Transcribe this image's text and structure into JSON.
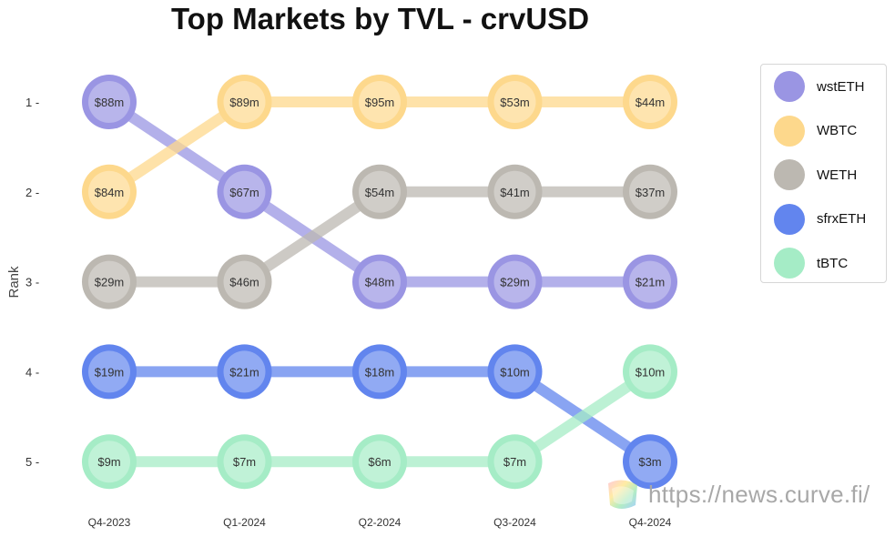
{
  "chart_data": {
    "type": "line",
    "subtype": "bump",
    "title": "Top Markets by TVL - crvUSD",
    "xlabel": "",
    "ylabel": "Rank",
    "categories": [
      "Q4-2023",
      "Q1-2024",
      "Q2-2024",
      "Q3-2024",
      "Q4-2024"
    ],
    "ranks": [
      1,
      2,
      3,
      4,
      5
    ],
    "rank_labels": [
      "1 -",
      "2 -",
      "3 -",
      "4 -",
      "5 -"
    ],
    "y_inverted": true,
    "grid": false,
    "legend_position": "right",
    "series": [
      {
        "name": "wstETH",
        "color": "#9a95e3",
        "ranks": [
          1,
          2,
          3,
          3,
          3
        ],
        "labels": [
          "$88m",
          "$67m",
          "$48m",
          "$29m",
          "$21m"
        ]
      },
      {
        "name": "WBTC",
        "color": "#fdd88c",
        "ranks": [
          2,
          1,
          1,
          1,
          1
        ],
        "labels": [
          "$84m",
          "$89m",
          "$95m",
          "$53m",
          "$44m"
        ]
      },
      {
        "name": "WETH",
        "color": "#bcb8b1",
        "ranks": [
          3,
          3,
          2,
          2,
          2
        ],
        "labels": [
          "$29m",
          "$46m",
          "$54m",
          "$41m",
          "$37m"
        ]
      },
      {
        "name": "sfrxETH",
        "color": "#6285ee",
        "ranks": [
          4,
          4,
          4,
          4,
          5
        ],
        "labels": [
          "$19m",
          "$21m",
          "$18m",
          "$10m",
          "$3m"
        ]
      },
      {
        "name": "tBTC",
        "color": "#a5ecc6",
        "ranks": [
          5,
          5,
          5,
          5,
          4
        ],
        "labels": [
          "$9m",
          "$7m",
          "$6m",
          "$7m",
          "$10m"
        ]
      }
    ]
  },
  "watermark": {
    "text": "https://news.curve.fi/"
  }
}
